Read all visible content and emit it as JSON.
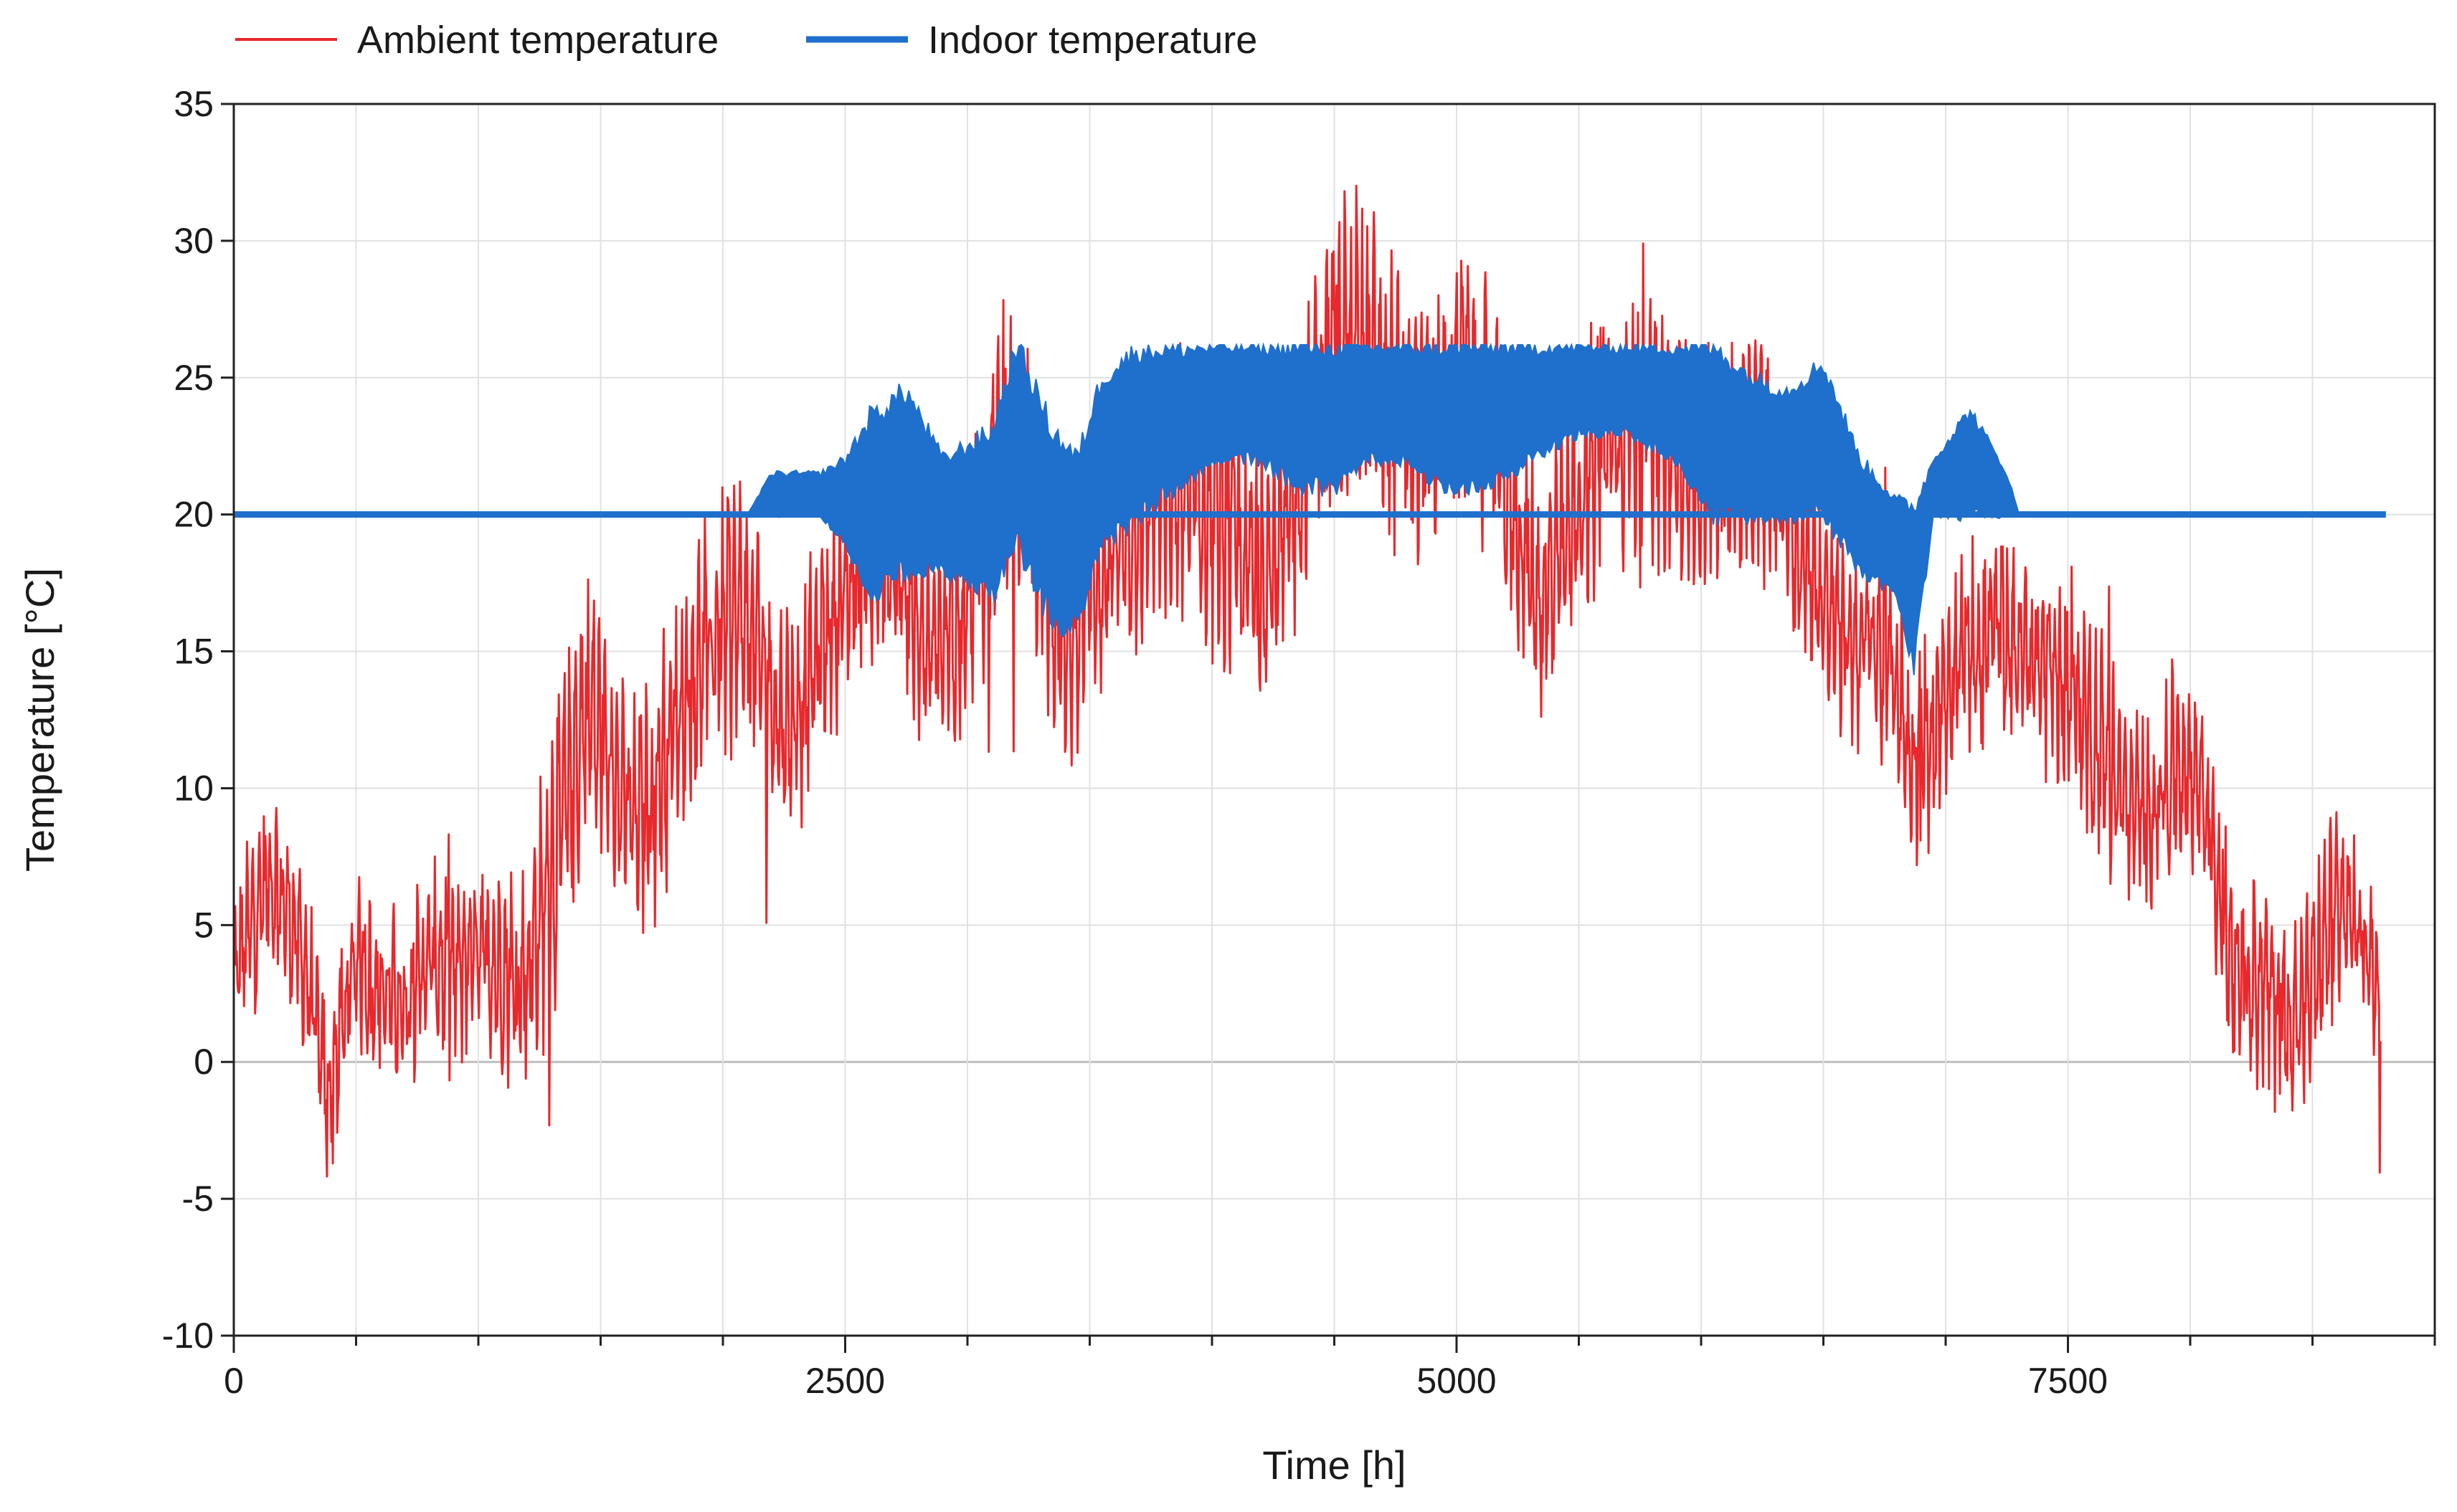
{
  "chart_data": {
    "type": "line",
    "title": "",
    "xlabel": "Time [h]",
    "ylabel": "Temperature [°C]",
    "xlim": [
      0,
      9000
    ],
    "ylim": [
      -10,
      35
    ],
    "xticks": [
      0,
      2500,
      5000,
      7500
    ],
    "xtick_labels": [
      "0",
      "2500",
      "5000",
      "7500"
    ],
    "yticks": [
      -10,
      -5,
      0,
      5,
      10,
      15,
      20,
      25,
      30,
      35
    ],
    "ytick_labels": [
      "-10",
      "-5",
      "0",
      "5",
      "10",
      "15",
      "20",
      "25",
      "30",
      "35"
    ],
    "grid": true,
    "legend_position": "top-left",
    "series": [
      {
        "name": "Ambient temperature",
        "color": "#e8282c",
        "style": "thin-noisy-line",
        "x": [
          0,
          150,
          300,
          380,
          500,
          600,
          700,
          800,
          900,
          1000,
          1100,
          1200,
          1350,
          1450,
          1550,
          1650,
          1800,
          1950,
          2100,
          2250,
          2400,
          2550,
          2700,
          2850,
          3000,
          3150,
          3300,
          3400,
          3500,
          3650,
          3800,
          3950,
          4050,
          4150,
          4300,
          4450,
          4600,
          4750,
          4900,
          5050,
          5200,
          5350,
          5500,
          5650,
          5800,
          5950,
          6100,
          6250,
          6400,
          6550,
          6700,
          6800,
          6850,
          6950,
          7050,
          7200,
          7350,
          7500,
          7650,
          7800,
          7950,
          8050,
          8150,
          8300,
          8450,
          8600,
          8780
        ],
        "y": [
          3,
          5,
          2,
          -2,
          4,
          2,
          1,
          3,
          4,
          7,
          6,
          5,
          8,
          12,
          10,
          9,
          11,
          12,
          15,
          14,
          17,
          18,
          19,
          17,
          17,
          19,
          16,
          14,
          18,
          19,
          20,
          22,
          24,
          21,
          19,
          23,
          25,
          24,
          21,
          23,
          22,
          20,
          22,
          23,
          24,
          23,
          20,
          19,
          18,
          17,
          16,
          14,
          11,
          13,
          17,
          18,
          14,
          11,
          10,
          9,
          10,
          9,
          4,
          5,
          4,
          6,
          2
        ],
        "band": [
          6,
          6,
          6,
          7,
          6,
          6,
          6,
          6,
          8,
          7,
          7,
          8,
          11,
          10,
          8,
          8,
          9,
          9,
          9,
          8,
          8,
          7,
          8,
          8,
          10,
          11,
          9,
          8,
          8,
          8,
          9,
          10,
          11,
          9,
          9,
          10,
          11,
          10,
          9,
          9,
          9,
          9,
          9,
          10,
          9,
          9,
          8,
          8,
          8,
          7,
          7,
          8,
          7,
          8,
          7,
          7,
          7,
          8,
          8,
          7,
          7,
          7,
          8,
          7,
          7,
          7,
          7
        ]
      },
      {
        "name": "Indoor temperature",
        "color": "#1f6fcc",
        "style": "thick-line-with-band",
        "x": [
          0,
          2100,
          2200,
          2400,
          2500,
          2600,
          2750,
          2900,
          3100,
          3200,
          3350,
          3450,
          3550,
          3700,
          3850,
          4000,
          4200,
          4350,
          4500,
          4650,
          4800,
          4950,
          5100,
          5300,
          5500,
          5700,
          5900,
          6050,
          6200,
          6350,
          6500,
          6650,
          6800,
          6870,
          6950,
          7100,
          7250,
          7300,
          8800
        ],
        "low": [
          20,
          20,
          20,
          20,
          19,
          17,
          18,
          18,
          17,
          19,
          16,
          16,
          19,
          20,
          21,
          22,
          22,
          21,
          21,
          22,
          22,
          21,
          21,
          22,
          23,
          23,
          22,
          20,
          20,
          20,
          20,
          18,
          17,
          14.5,
          20,
          20,
          20,
          20,
          20
        ],
        "high": [
          20,
          20,
          21.5,
          21.5,
          22,
          23.5,
          24.5,
          22,
          23,
          26.2,
          23,
          22,
          25,
          26,
          26,
          26.1,
          26.1,
          26.1,
          26.1,
          26.1,
          26.1,
          26.1,
          26.1,
          26.1,
          26.1,
          26.1,
          26.1,
          26.1,
          25,
          24.5,
          25.5,
          22,
          20.5,
          20.2,
          22,
          23.8,
          21.5,
          20,
          20
        ]
      }
    ]
  }
}
